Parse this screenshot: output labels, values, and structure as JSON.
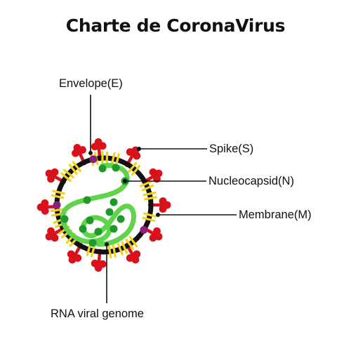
{
  "title": "Charte de CoronaVirus",
  "labels": {
    "envelope": "Envelope(E)",
    "spike": "Spike(S)",
    "nucleocapsid": "Nucleocapsid(N)",
    "membrane": "Membrane(M)",
    "rna": "RNA viral genome"
  },
  "colors": {
    "membrane_black": "#111111",
    "membrane_yellow": "#f2d21a",
    "spike_red": "#d8111b",
    "envelope_purple": "#8a1f7a",
    "rna_green": "#5fd44a",
    "nucleocapsid_green": "#1e9a2a",
    "label_text": "#111111"
  }
}
